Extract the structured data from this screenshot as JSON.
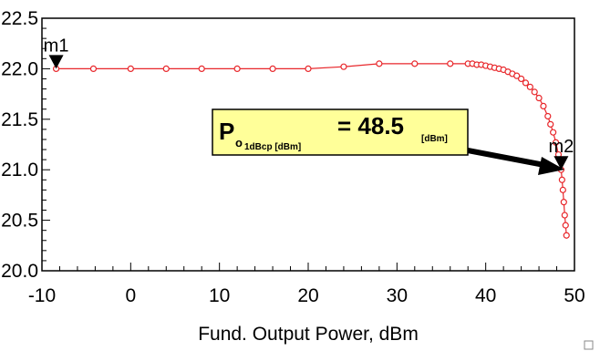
{
  "chart_data": {
    "type": "line",
    "xlabel": "Fund. Output Power, dBm",
    "ylabel": "",
    "xlim": [
      -10,
      50
    ],
    "ylim": [
      20.0,
      22.5
    ],
    "xticks": [
      -10,
      0,
      10,
      20,
      30,
      40,
      50
    ],
    "xtick_labels": [
      "-10",
      "0",
      "10",
      "20",
      "30",
      "40",
      "50"
    ],
    "yticks": [
      20.0,
      20.5,
      21.0,
      21.5,
      22.0,
      22.5
    ],
    "ytick_labels": [
      "20.0",
      "20.5",
      "21.0",
      "21.5",
      "22.0",
      "22.5"
    ],
    "grid": false,
    "series": [
      {
        "color": "#e8272b",
        "marker": "circle",
        "x": [
          -8.4,
          -4.2,
          0.0,
          4.0,
          8.0,
          12.0,
          16.0,
          20.0,
          24.0,
          28.0,
          32.0,
          36.0,
          38.0,
          38.5,
          39.0,
          39.5,
          40.0,
          40.5,
          41.0,
          41.5,
          42.0,
          42.5,
          43.0,
          43.5,
          44.0,
          44.5,
          45.0,
          45.5,
          46.0,
          46.5,
          47.0,
          47.3,
          47.6,
          47.9,
          48.2,
          48.5,
          48.6,
          48.7,
          48.8,
          48.9,
          49.0,
          49.1
        ],
        "values": [
          22.0,
          22.0,
          22.0,
          22.0,
          22.0,
          22.0,
          22.0,
          22.0,
          22.02,
          22.05,
          22.05,
          22.05,
          22.05,
          22.05,
          22.04,
          22.04,
          22.03,
          22.02,
          22.01,
          22.0,
          21.99,
          21.97,
          21.95,
          21.93,
          21.9,
          21.86,
          21.82,
          21.77,
          21.71,
          21.63,
          21.53,
          21.45,
          21.37,
          21.27,
          21.15,
          21.0,
          20.9,
          20.8,
          20.68,
          20.55,
          20.45,
          20.35
        ]
      }
    ],
    "markers": [
      {
        "label": "m1",
        "x": -8.4,
        "y": 22.0
      },
      {
        "label": "m2",
        "x": 48.5,
        "y": 21.0
      }
    ],
    "annotation": {
      "main": "P",
      "sub": "o",
      "sub2": "1dBcp [dBm]",
      "equals": "= 48.5",
      "units": "[dBm]",
      "bg_color": "#ffff99"
    }
  }
}
